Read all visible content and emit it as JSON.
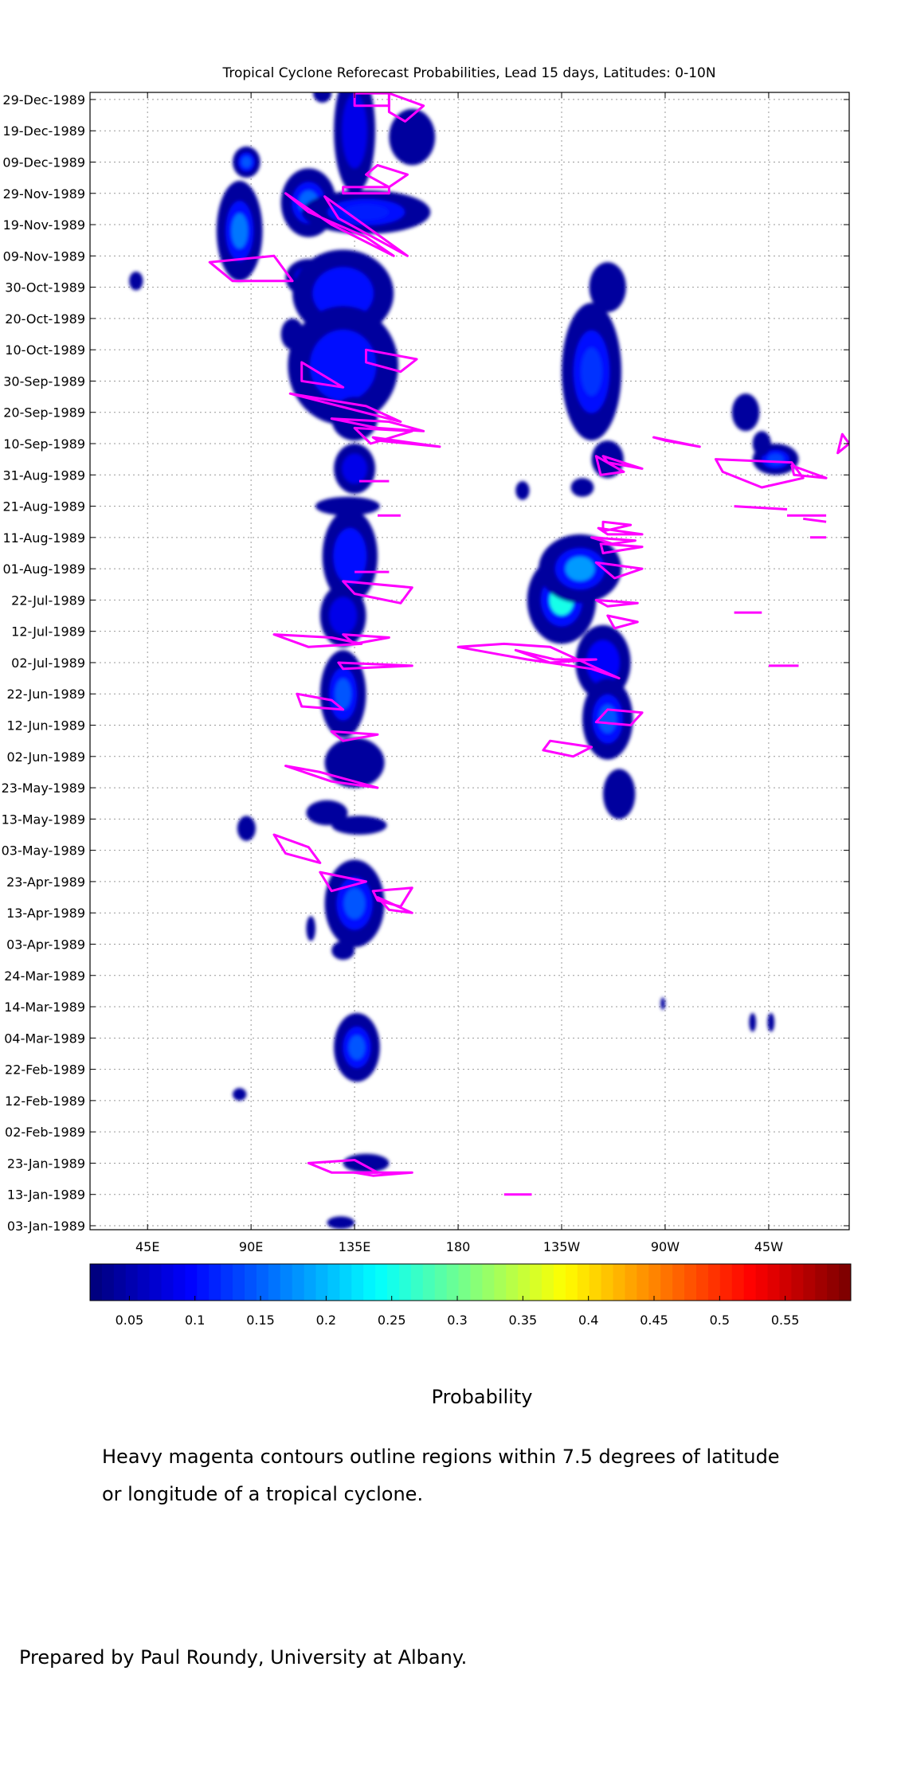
{
  "chart_data": {
    "type": "heatmap",
    "title": "Tropical Cyclone Reforecast Probabilities, Lead 15 days, Latitudes: 0-10N",
    "xlabel": "",
    "ylabel": "",
    "x_ticks": [
      "45E",
      "90E",
      "135E",
      "180",
      "135W",
      "90W",
      "45W"
    ],
    "x_tick_values": [
      45,
      90,
      135,
      180,
      225,
      270,
      315
    ],
    "xlim": [
      20,
      350
    ],
    "y_ticks": [
      "03-Jan-1989",
      "13-Jan-1989",
      "23-Jan-1989",
      "02-Feb-1989",
      "12-Feb-1989",
      "22-Feb-1989",
      "04-Mar-1989",
      "14-Mar-1989",
      "24-Mar-1989",
      "03-Apr-1989",
      "13-Apr-1989",
      "23-Apr-1989",
      "03-May-1989",
      "13-May-1989",
      "23-May-1989",
      "02-Jun-1989",
      "12-Jun-1989",
      "22-Jun-1989",
      "02-Jul-1989",
      "12-Jul-1989",
      "22-Jul-1989",
      "01-Aug-1989",
      "11-Aug-1989",
      "21-Aug-1989",
      "31-Aug-1989",
      "10-Sep-1989",
      "20-Sep-1989",
      "30-Sep-1989",
      "10-Oct-1989",
      "20-Oct-1989",
      "30-Oct-1989",
      "09-Nov-1989",
      "19-Nov-1989",
      "29-Nov-1989",
      "09-Dec-1989",
      "19-Dec-1989",
      "29-Dec-1989"
    ],
    "ylim_days": [
      0,
      361
    ],
    "grid": true,
    "colorbar": {
      "label": "Probability",
      "ticks": [
        "0.05",
        "0.1",
        "0.15",
        "0.2",
        "0.25",
        "0.3",
        "0.35",
        "0.4",
        "0.45",
        "0.5",
        "0.55"
      ],
      "tick_values": [
        0.05,
        0.1,
        0.15,
        0.2,
        0.25,
        0.3,
        0.35,
        0.4,
        0.45,
        0.5,
        0.55
      ],
      "range": [
        0.02,
        0.6
      ],
      "colormap": "jet"
    },
    "blobs": [
      {
        "lon": 121,
        "day": 362,
        "rx": 4,
        "ry": 3,
        "p": 0.07
      },
      {
        "lon": 135,
        "day": 350,
        "rx": 9,
        "ry": 20,
        "p": 0.08
      },
      {
        "lon": 160,
        "day": 348,
        "rx": 10,
        "ry": 9,
        "p": 0.06
      },
      {
        "lon": 88,
        "day": 340,
        "rx": 6,
        "ry": 5,
        "p": 0.14
      },
      {
        "lon": 115,
        "day": 327,
        "rx": 12,
        "ry": 11,
        "p": 0.15
      },
      {
        "lon": 140,
        "day": 324,
        "rx": 28,
        "ry": 7,
        "p": 0.11
      },
      {
        "lon": 85,
        "day": 318,
        "rx": 10,
        "ry": 16,
        "p": 0.16
      },
      {
        "lon": 115,
        "day": 303,
        "rx": 10,
        "ry": 6,
        "p": 0.13
      },
      {
        "lon": 130,
        "day": 298,
        "rx": 22,
        "ry": 14,
        "p": 0.1
      },
      {
        "lon": 40,
        "day": 302,
        "rx": 3,
        "ry": 3,
        "p": 0.06
      },
      {
        "lon": 108,
        "day": 285,
        "rx": 5,
        "ry": 5,
        "p": 0.06
      },
      {
        "lon": 130,
        "day": 275,
        "rx": 24,
        "ry": 19,
        "p": 0.1
      },
      {
        "lon": 135,
        "day": 258,
        "rx": 10,
        "ry": 7,
        "p": 0.07
      },
      {
        "lon": 135,
        "day": 242,
        "rx": 9,
        "ry": 8,
        "p": 0.08
      },
      {
        "lon": 132,
        "day": 230,
        "rx": 14,
        "ry": 3,
        "p": 0.06
      },
      {
        "lon": 133,
        "day": 214,
        "rx": 12,
        "ry": 15,
        "p": 0.1
      },
      {
        "lon": 130,
        "day": 195,
        "rx": 10,
        "ry": 10,
        "p": 0.08
      },
      {
        "lon": 130,
        "day": 170,
        "rx": 10,
        "ry": 14,
        "p": 0.14
      },
      {
        "lon": 135,
        "day": 148,
        "rx": 13,
        "ry": 8,
        "p": 0.07
      },
      {
        "lon": 123,
        "day": 132,
        "rx": 9,
        "ry": 4,
        "p": 0.06
      },
      {
        "lon": 137,
        "day": 128,
        "rx": 12,
        "ry": 3,
        "p": 0.06
      },
      {
        "lon": 88,
        "day": 127,
        "rx": 4,
        "ry": 4,
        "p": 0.07
      },
      {
        "lon": 135,
        "day": 103,
        "rx": 13,
        "ry": 14,
        "p": 0.14
      },
      {
        "lon": 130,
        "day": 88,
        "rx": 5,
        "ry": 3,
        "p": 0.06
      },
      {
        "lon": 116,
        "day": 95,
        "rx": 2,
        "ry": 4,
        "p": 0.05
      },
      {
        "lon": 136,
        "day": 57,
        "rx": 10,
        "ry": 11,
        "p": 0.14
      },
      {
        "lon": 85,
        "day": 42,
        "rx": 3,
        "ry": 2,
        "p": 0.05
      },
      {
        "lon": 140,
        "day": 20,
        "rx": 10,
        "ry": 3,
        "p": 0.07
      },
      {
        "lon": 129,
        "day": 1,
        "rx": 6,
        "ry": 2,
        "p": 0.05
      },
      {
        "lon": 225,
        "day": 200,
        "rx": 15,
        "ry": 14,
        "p": 0.25
      },
      {
        "lon": 233,
        "day": 210,
        "rx": 18,
        "ry": 11,
        "p": 0.18
      },
      {
        "lon": 238,
        "day": 273,
        "rx": 13,
        "ry": 22,
        "p": 0.12
      },
      {
        "lon": 245,
        "day": 245,
        "rx": 7,
        "ry": 6,
        "p": 0.06
      },
      {
        "lon": 245,
        "day": 300,
        "rx": 8,
        "ry": 8,
        "p": 0.07
      },
      {
        "lon": 234,
        "day": 236,
        "rx": 5,
        "ry": 3,
        "p": 0.06
      },
      {
        "lon": 243,
        "day": 180,
        "rx": 12,
        "ry": 12,
        "p": 0.09
      },
      {
        "lon": 245,
        "day": 162,
        "rx": 11,
        "ry": 13,
        "p": 0.14
      },
      {
        "lon": 250,
        "day": 138,
        "rx": 7,
        "ry": 8,
        "p": 0.07
      },
      {
        "lon": 208,
        "day": 235,
        "rx": 3,
        "ry": 3,
        "p": 0.06
      },
      {
        "lon": 305,
        "day": 260,
        "rx": 6,
        "ry": 6,
        "p": 0.07
      },
      {
        "lon": 318,
        "day": 245,
        "rx": 10,
        "ry": 5,
        "p": 0.13
      },
      {
        "lon": 312,
        "day": 250,
        "rx": 4,
        "ry": 4,
        "p": 0.06
      },
      {
        "lon": 269,
        "day": 71,
        "rx": 1,
        "ry": 2,
        "p": 0.05
      },
      {
        "lon": 308,
        "day": 65,
        "rx": 1.5,
        "ry": 3,
        "p": 0.06
      },
      {
        "lon": 316,
        "day": 65,
        "rx": 1.5,
        "ry": 3,
        "p": 0.06
      }
    ],
    "tc_contours": [
      [
        [
          135,
          362
        ],
        [
          150,
          362
        ],
        [
          150,
          358
        ],
        [
          135,
          358
        ]
      ],
      [
        [
          150,
          362
        ],
        [
          165,
          358
        ],
        [
          157,
          353
        ],
        [
          150,
          356
        ]
      ],
      [
        [
          145,
          339
        ],
        [
          158,
          336
        ],
        [
          150,
          332
        ],
        [
          140,
          336
        ]
      ],
      [
        [
          130,
          332
        ],
        [
          150,
          332
        ],
        [
          150,
          330
        ],
        [
          130,
          330
        ]
      ],
      [
        [
          105,
          330
        ],
        [
          125,
          320
        ],
        [
          152,
          310
        ],
        [
          140,
          316
        ],
        [
          115,
          324
        ]
      ],
      [
        [
          122,
          329
        ],
        [
          158,
          310
        ],
        [
          128,
          322
        ]
      ],
      [
        [
          72,
          308
        ],
        [
          100,
          310
        ],
        [
          108,
          302
        ],
        [
          82,
          302
        ]
      ],
      [
        [
          140,
          280
        ],
        [
          162,
          277
        ],
        [
          155,
          273
        ],
        [
          140,
          276
        ]
      ],
      [
        [
          112,
          276
        ],
        [
          130,
          268
        ],
        [
          112,
          270
        ]
      ],
      [
        [
          107,
          266
        ],
        [
          140,
          262
        ],
        [
          155,
          257
        ]
      ],
      [
        [
          125,
          258
        ],
        [
          150,
          257
        ],
        [
          165,
          254
        ],
        [
          145,
          255
        ]
      ],
      [
        [
          135,
          255
        ],
        [
          160,
          254
        ],
        [
          142,
          250
        ]
      ],
      [
        [
          143,
          252
        ],
        [
          172,
          249
        ],
        [
          145,
          251
        ]
      ],
      [
        [
          265,
          252
        ],
        [
          285,
          249
        ],
        [
          270,
          251
        ]
      ],
      [
        [
          240,
          246
        ],
        [
          252,
          241
        ],
        [
          242,
          240
        ]
      ],
      [
        [
          345,
          247
        ],
        [
          350,
          250
        ],
        [
          347,
          253
        ]
      ],
      [
        [
          243,
          246
        ],
        [
          260,
          242
        ],
        [
          245,
          244
        ]
      ],
      [
        [
          292,
          245
        ],
        [
          325,
          244
        ],
        [
          330,
          239
        ],
        [
          312,
          236
        ],
        [
          295,
          241
        ]
      ],
      [
        [
          325,
          243
        ],
        [
          340,
          239
        ],
        [
          326,
          240
        ]
      ],
      [
        [
          137,
          238
        ],
        [
          150,
          238
        ]
      ],
      [
        [
          145,
          227
        ],
        [
          155,
          227
        ]
      ],
      [
        [
          300,
          230
        ],
        [
          323,
          229
        ]
      ],
      [
        [
          323,
          227
        ],
        [
          340,
          227
        ]
      ],
      [
        [
          330,
          226
        ],
        [
          340,
          225
        ]
      ],
      [
        [
          333,
          220
        ],
        [
          340,
          220
        ]
      ],
      [
        [
          243,
          225
        ],
        [
          255,
          224
        ],
        [
          243,
          222
        ]
      ],
      [
        [
          241,
          223
        ],
        [
          260,
          221
        ],
        [
          245,
          221
        ]
      ],
      [
        [
          238,
          220
        ],
        [
          257,
          219
        ],
        [
          247,
          218
        ]
      ],
      [
        [
          242,
          218
        ],
        [
          260,
          217
        ],
        [
          243,
          215
        ]
      ],
      [
        [
          240,
          212
        ],
        [
          260,
          210
        ],
        [
          248,
          207
        ]
      ],
      [
        [
          135,
          209
        ],
        [
          150,
          209
        ]
      ],
      [
        [
          130,
          206
        ],
        [
          160,
          204
        ],
        [
          155,
          199
        ],
        [
          135,
          202
        ]
      ],
      [
        [
          300,
          196
        ],
        [
          312,
          196
        ]
      ],
      [
        [
          240,
          200
        ],
        [
          258,
          199
        ],
        [
          245,
          198
        ]
      ],
      [
        [
          245,
          195
        ],
        [
          258,
          193
        ],
        [
          248,
          191
        ]
      ],
      [
        [
          100,
          189
        ],
        [
          125,
          188
        ],
        [
          138,
          186
        ],
        [
          115,
          185
        ]
      ],
      [
        [
          130,
          189
        ],
        [
          150,
          188
        ],
        [
          135,
          186
        ]
      ],
      [
        [
          180,
          185
        ],
        [
          200,
          186
        ],
        [
          220,
          185
        ],
        [
          235,
          180
        ],
        [
          250,
          175
        ],
        [
          238,
          178
        ],
        [
          210,
          181
        ]
      ],
      [
        [
          205,
          184
        ],
        [
          220,
          180
        ],
        [
          240,
          181
        ],
        [
          222,
          181
        ]
      ],
      [
        [
          128,
          180
        ],
        [
          160,
          179
        ],
        [
          130,
          178
        ]
      ],
      [
        [
          315,
          179
        ],
        [
          328,
          179
        ]
      ],
      [
        [
          110,
          170
        ],
        [
          125,
          168
        ],
        [
          130,
          165
        ],
        [
          112,
          166
        ]
      ],
      [
        [
          125,
          158
        ],
        [
          145,
          157
        ],
        [
          130,
          155
        ]
      ],
      [
        [
          245,
          165
        ],
        [
          260,
          164
        ],
        [
          255,
          160
        ],
        [
          240,
          161
        ]
      ],
      [
        [
          220,
          155
        ],
        [
          238,
          153
        ],
        [
          230,
          150
        ],
        [
          217,
          152
        ]
      ],
      [
        [
          105,
          147
        ],
        [
          125,
          142
        ],
        [
          145,
          140
        ],
        [
          120,
          145
        ]
      ],
      [
        [
          100,
          125
        ],
        [
          115,
          121
        ],
        [
          120,
          116
        ],
        [
          105,
          119
        ]
      ],
      [
        [
          120,
          113
        ],
        [
          140,
          110
        ],
        [
          125,
          107
        ]
      ],
      [
        [
          143,
          107
        ],
        [
          160,
          108
        ],
        [
          155,
          102
        ],
        [
          145,
          104
        ]
      ],
      [
        [
          145,
          105
        ],
        [
          160,
          100
        ],
        [
          150,
          101
        ]
      ],
      [
        [
          115,
          20
        ],
        [
          135,
          21
        ],
        [
          145,
          17
        ],
        [
          125,
          17
        ]
      ],
      [
        [
          135,
          17
        ],
        [
          160,
          17
        ],
        [
          143,
          16
        ]
      ],
      [
        [
          200,
          10
        ],
        [
          212,
          10
        ]
      ]
    ]
  },
  "captions": {
    "probability_label": "Probability",
    "note_line1": "Heavy magenta contours outline regions within 7.5 degrees of latitude",
    "note_line2": "or longitude of a tropical cyclone.",
    "credit": "Prepared by Paul Roundy, University at Albany."
  }
}
